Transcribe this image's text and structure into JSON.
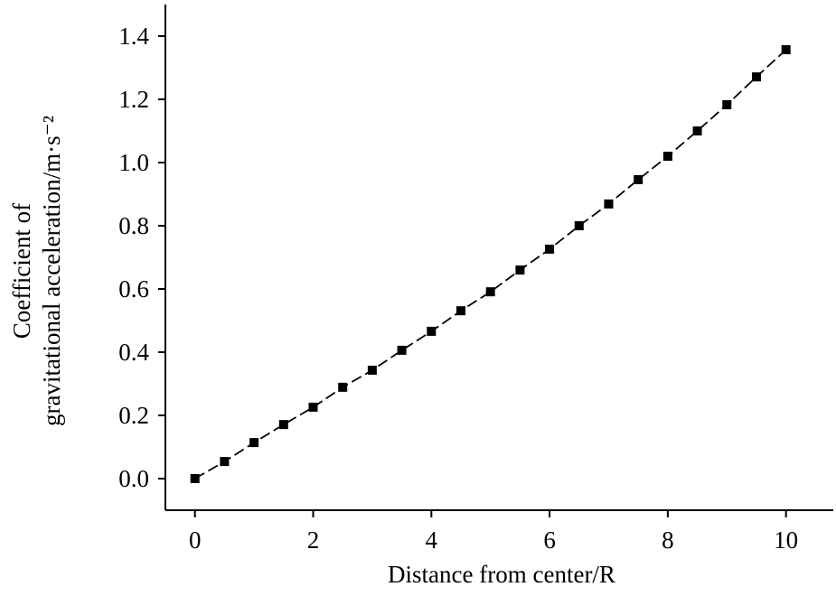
{
  "chart_data": {
    "type": "line",
    "xlabel": "Distance from center/R",
    "ylabel": [
      "Coefficient of",
      "gravitational acceleration/m·s⁻²"
    ],
    "x": [
      0,
      0.5,
      1,
      1.5,
      2,
      2.5,
      3,
      3.5,
      4,
      4.5,
      5,
      5.5,
      6,
      6.5,
      7,
      7.5,
      8,
      8.5,
      9,
      9.5,
      10
    ],
    "series": [
      {
        "color": "#000000",
        "values": [
          0,
          0.054,
          0.114,
          0.171,
          0.226,
          0.289,
          0.343,
          0.406,
          0.466,
          0.531,
          0.591,
          0.66,
          0.726,
          0.8,
          0.869,
          0.946,
          1.02,
          1.1,
          1.183,
          1.271,
          1.357
        ]
      }
    ],
    "xlim": [
      -0.5,
      10.8
    ],
    "xticks": [
      0,
      2,
      4,
      6,
      8,
      10
    ],
    "ylim": [
      -0.1,
      1.5
    ],
    "yticks": [
      {
        "value": 0,
        "label": "0.0"
      },
      {
        "value": 0.2,
        "label": "0.2"
      },
      {
        "value": 0.4,
        "label": "0.4"
      },
      {
        "value": 0.6,
        "label": "0.6"
      },
      {
        "value": 0.8,
        "label": "0.8"
      },
      {
        "value": 1,
        "label": "1.0"
      },
      {
        "value": 1.2,
        "label": "1.2"
      },
      {
        "value": 1.4,
        "label": "1.4"
      }
    ],
    "grid": false
  }
}
